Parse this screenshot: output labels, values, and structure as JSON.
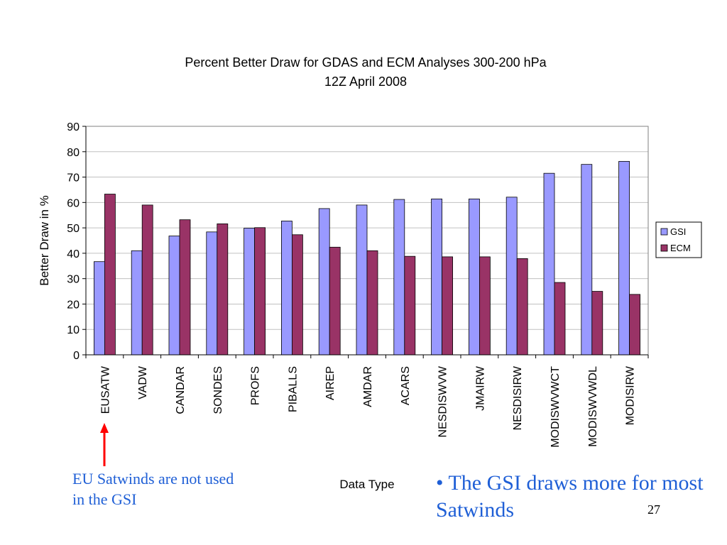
{
  "chart_data": {
    "type": "bar",
    "title": "Percent Better Draw for GDAS and ECM Analyses 300-200 hPa",
    "subtitle": "12Z April 2008",
    "xlabel": "Data Type",
    "ylabel": "Better Draw in %",
    "ylim": [
      0,
      90
    ],
    "yticks": [
      "0",
      "10",
      "20",
      "30",
      "40",
      "50",
      "60",
      "70",
      "80",
      "90"
    ],
    "grid": true,
    "legend_position": "right",
    "categories": [
      "EUSATW",
      "VADW",
      "CANDAR",
      "SONDES",
      "PROFS",
      "PIBALLS",
      "AIREP",
      "AMDAR",
      "ACARS",
      "NESDISWVW",
      "JMAIRW",
      "NESDISIRW",
      "MODISWVWCT",
      "MODISWVWDL",
      "MODISIRW"
    ],
    "series": [
      {
        "name": "GSI",
        "color": "#9999ff",
        "values": [
          36.7,
          41,
          46.8,
          48.4,
          49.9,
          52.7,
          57.6,
          59,
          61.2,
          61.4,
          61.4,
          62.1,
          71.5,
          75,
          76.2
        ]
      },
      {
        "name": "ECM",
        "color": "#993366",
        "values": [
          63.3,
          59,
          53.2,
          51.6,
          50.1,
          47.3,
          42.4,
          41,
          38.8,
          38.6,
          38.6,
          37.9,
          28.5,
          25,
          23.8
        ]
      }
    ]
  },
  "annotations": {
    "arrow_color": "#ff0000",
    "left_note": "EU Satwinds are not used in the GSI",
    "right_note": "• The GSI draws more for most Satwinds"
  },
  "slide": {
    "page_number": "27"
  }
}
